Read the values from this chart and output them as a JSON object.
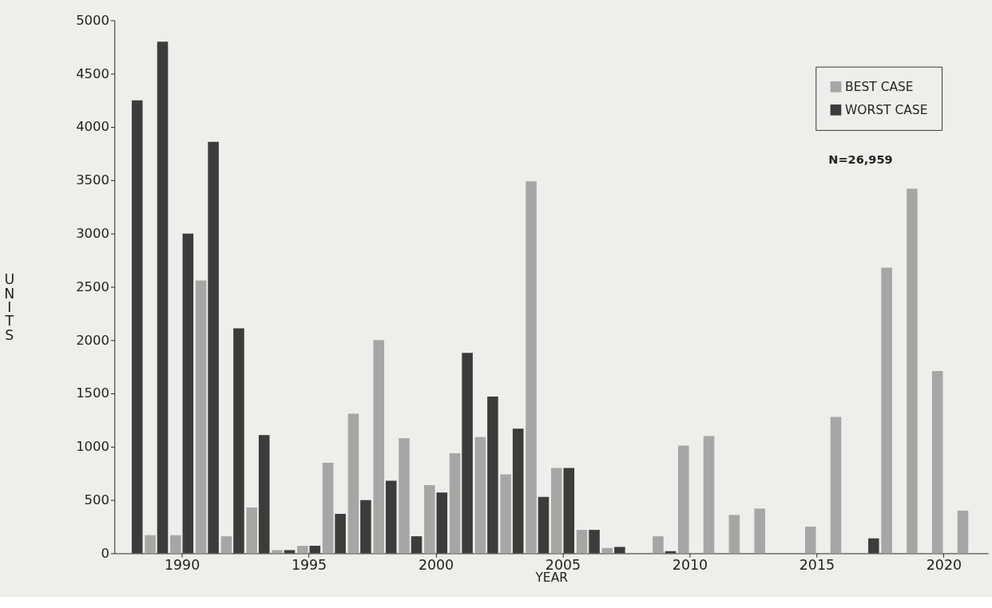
{
  "chart_data": {
    "type": "bar",
    "xlabel": "YEAR",
    "ylabel": "UNITS",
    "x": [
      1988,
      1989,
      1990,
      1991,
      1992,
      1993,
      1994,
      1995,
      1996,
      1997,
      1998,
      1999,
      2000,
      2001,
      2002,
      2003,
      2004,
      2005,
      2006,
      2007,
      2008,
      2009,
      2010,
      2011,
      2012,
      2013,
      2014,
      2015,
      2016,
      2017,
      2018,
      2019,
      2020,
      2021
    ],
    "series": [
      {
        "name": "BEST CASE",
        "color": "#a6a6a6",
        "values": [
          null,
          170,
          170,
          2560,
          160,
          430,
          30,
          70,
          850,
          1310,
          2000,
          1080,
          640,
          940,
          1090,
          740,
          3490,
          800,
          220,
          50,
          null,
          160,
          1010,
          1100,
          360,
          420,
          null,
          250,
          1280,
          null,
          2680,
          3420,
          1710,
          400
        ]
      },
      {
        "name": "WORST CASE",
        "color": "#3c3c3c",
        "values": [
          4250,
          4800,
          3000,
          3860,
          2110,
          1110,
          30,
          70,
          370,
          500,
          680,
          160,
          570,
          1880,
          1470,
          1170,
          530,
          800,
          220,
          60,
          null,
          20,
          null,
          null,
          null,
          null,
          null,
          null,
          null,
          140,
          null,
          null,
          null,
          null
        ]
      }
    ],
    "xlim": [
      1987.5,
      2021.6
    ],
    "xticks": [
      1990,
      1995,
      2000,
      2005,
      2010,
      2015,
      2020
    ],
    "ylim": [
      0,
      5000
    ],
    "yticks": [
      0,
      500,
      1000,
      1500,
      2000,
      2500,
      3000,
      3500,
      4000,
      4500,
      5000
    ],
    "legend": "top right",
    "grid": false,
    "annotations": [
      "N=26,959"
    ]
  }
}
